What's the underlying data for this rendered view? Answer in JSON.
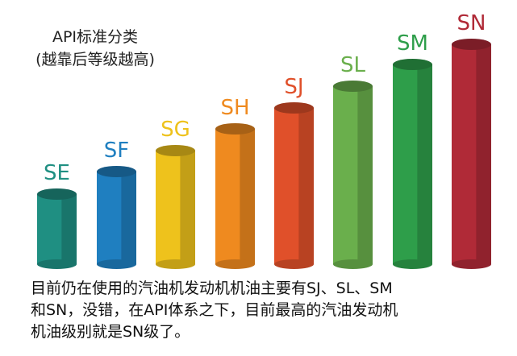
{
  "title": [
    "API标准分类",
    "(越靠后等级越高)"
  ],
  "grades": [
    {
      "label": "SE",
      "color": "#1f8f82"
    },
    {
      "label": "SF",
      "color": "#1f7fc0"
    },
    {
      "label": "SG",
      "color": "#eec21c"
    },
    {
      "label": "SH",
      "color": "#ef8a1f"
    },
    {
      "label": "SJ",
      "color": "#e0502a"
    },
    {
      "label": "SL",
      "color": "#6aaf4c"
    },
    {
      "label": "SM",
      "color": "#2e9e4a"
    },
    {
      "label": "SN",
      "color": "#b02a37"
    }
  ],
  "caption": [
    "目前仍在使用的汽油机发动机机油主要有SJ、SL、SM",
    "和SN，没错，在API体系之下，目前最高的汽油发动机",
    "机油级别就是SN级了。"
  ]
}
